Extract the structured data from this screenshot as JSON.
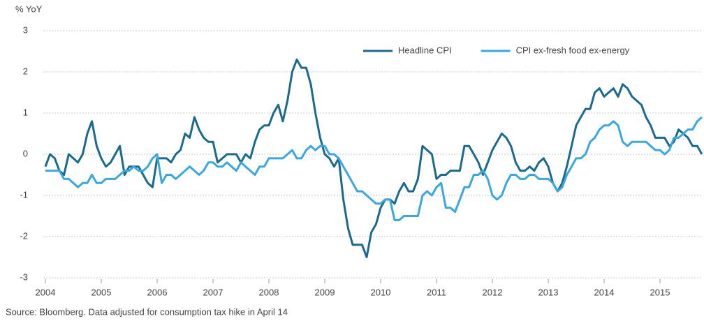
{
  "chart_data": {
    "type": "line",
    "y_label": "% YoY",
    "source": "Source: Bloomberg. Data adjusted for consumption tax hike in April 14",
    "x": [
      2004,
      2004.083,
      2004.167,
      2004.25,
      2004.333,
      2004.417,
      2004.5,
      2004.583,
      2004.667,
      2004.75,
      2004.833,
      2004.917,
      2005,
      2005.083,
      2005.167,
      2005.25,
      2005.333,
      2005.417,
      2005.5,
      2005.583,
      2005.667,
      2005.75,
      2005.833,
      2005.917,
      2006,
      2006.083,
      2006.167,
      2006.25,
      2006.333,
      2006.417,
      2006.5,
      2006.583,
      2006.667,
      2006.75,
      2006.833,
      2006.917,
      2007,
      2007.083,
      2007.167,
      2007.25,
      2007.333,
      2007.417,
      2007.5,
      2007.583,
      2007.667,
      2007.75,
      2007.833,
      2007.917,
      2008,
      2008.083,
      2008.167,
      2008.25,
      2008.333,
      2008.417,
      2008.5,
      2008.583,
      2008.667,
      2008.75,
      2008.833,
      2008.917,
      2009,
      2009.083,
      2009.167,
      2009.25,
      2009.333,
      2009.417,
      2009.5,
      2009.583,
      2009.667,
      2009.75,
      2009.833,
      2009.917,
      2010,
      2010.083,
      2010.167,
      2010.25,
      2010.333,
      2010.417,
      2010.5,
      2010.583,
      2010.667,
      2010.75,
      2010.833,
      2010.917,
      2011,
      2011.083,
      2011.167,
      2011.25,
      2011.333,
      2011.417,
      2011.5,
      2011.583,
      2011.667,
      2011.75,
      2011.833,
      2011.917,
      2012,
      2012.083,
      2012.167,
      2012.25,
      2012.333,
      2012.417,
      2012.5,
      2012.583,
      2012.667,
      2012.75,
      2012.833,
      2012.917,
      2013,
      2013.083,
      2013.167,
      2013.25,
      2013.333,
      2013.417,
      2013.5,
      2013.583,
      2013.667,
      2013.75,
      2013.833,
      2013.917,
      2014,
      2014.083,
      2014.167,
      2014.25,
      2014.333,
      2014.417,
      2014.5,
      2014.583,
      2014.667,
      2014.75,
      2014.833,
      2014.917,
      2015,
      2015.083,
      2015.167,
      2015.25,
      2015.333,
      2015.417,
      2015.5,
      2015.583,
      2015.667,
      2015.75
    ],
    "series": [
      {
        "name": "Headline CPI",
        "color": "#1b6a8c",
        "values": [
          -0.3,
          0,
          -0.1,
          -0.4,
          -0.5,
          0,
          -0.1,
          -0.2,
          0,
          0.5,
          0.8,
          0.2,
          -0.1,
          -0.3,
          -0.2,
          0,
          0.2,
          -0.5,
          -0.3,
          -0.3,
          -0.3,
          -0.5,
          -0.7,
          -0.8,
          -0.1,
          -0.1,
          -0.1,
          -0.2,
          0,
          0.1,
          0.5,
          0.4,
          0.9,
          0.6,
          0.4,
          0.3,
          0.3,
          -0.2,
          -0.1,
          0,
          0,
          0,
          -0.2,
          0,
          -0.1,
          0.3,
          0.6,
          0.7,
          0.7,
          1.0,
          1.2,
          0.8,
          1.3,
          2.0,
          2.3,
          2.1,
          2.1,
          1.7,
          1.0,
          0.4,
          0,
          -0.1,
          -0.3,
          -0.1,
          -1.1,
          -1.8,
          -2.2,
          -2.2,
          -2.2,
          -2.5,
          -1.9,
          -1.7,
          -1.3,
          -1.1,
          -1.1,
          -1.2,
          -0.9,
          -0.7,
          -0.9,
          -0.9,
          -0.6,
          0.2,
          0.1,
          0,
          -0.6,
          -0.5,
          -0.5,
          -0.4,
          -0.4,
          -0.4,
          0.2,
          0.2,
          0,
          -0.2,
          -0.5,
          -0.2,
          0.1,
          0.3,
          0.5,
          0.4,
          0.2,
          -0.2,
          -0.4,
          -0.4,
          -0.3,
          -0.4,
          -0.2,
          -0.1,
          -0.3,
          -0.7,
          -0.9,
          -0.7,
          -0.3,
          0.2,
          0.7,
          0.9,
          1.1,
          1.1,
          1.5,
          1.6,
          1.4,
          1.5,
          1.6,
          1.4,
          1.7,
          1.6,
          1.4,
          1.3,
          1.2,
          0.9,
          0.7,
          0.4,
          0.4,
          0.4,
          0.2,
          0.3,
          0.6,
          0.5,
          0.4,
          0.2,
          0.2,
          0
        ]
      },
      {
        "name": "CPI ex-fresh food ex-energy",
        "color": "#3ba7dd",
        "values": [
          -0.4,
          -0.4,
          -0.4,
          -0.4,
          -0.6,
          -0.6,
          -0.7,
          -0.8,
          -0.7,
          -0.7,
          -0.5,
          -0.7,
          -0.7,
          -0.6,
          -0.6,
          -0.6,
          -0.5,
          -0.4,
          -0.4,
          -0.3,
          -0.4,
          -0.4,
          -0.3,
          -0.1,
          0,
          -0.7,
          -0.5,
          -0.5,
          -0.6,
          -0.5,
          -0.4,
          -0.3,
          -0.4,
          -0.5,
          -0.4,
          -0.2,
          -0.2,
          -0.3,
          -0.3,
          -0.2,
          -0.3,
          -0.4,
          -0.2,
          -0.3,
          -0.4,
          -0.5,
          -0.3,
          -0.3,
          -0.1,
          -0.1,
          -0.1,
          -0.1,
          0,
          0.1,
          -0.1,
          -0.1,
          0.1,
          0.2,
          0.1,
          0.2,
          0.2,
          0,
          0,
          -0.1,
          -0.3,
          -0.5,
          -0.7,
          -0.9,
          -0.9,
          -1.0,
          -1.1,
          -1.2,
          -1.2,
          -1.1,
          -1.1,
          -1.6,
          -1.6,
          -1.5,
          -1.5,
          -1.5,
          -1.5,
          -1.0,
          -0.9,
          -1.0,
          -0.8,
          -0.7,
          -1.3,
          -1.3,
          -1.4,
          -1.1,
          -0.8,
          -0.8,
          -0.5,
          -0.5,
          -0.4,
          -0.6,
          -1.0,
          -1.1,
          -1.0,
          -0.7,
          -0.5,
          -0.5,
          -0.6,
          -0.6,
          -0.5,
          -0.5,
          -0.6,
          -0.6,
          -0.6,
          -0.7,
          -0.9,
          -0.8,
          -0.5,
          -0.3,
          -0.1,
          -0.1,
          0,
          0.3,
          0.4,
          0.6,
          0.7,
          0.7,
          0.8,
          0.7,
          0.3,
          0.2,
          0.3,
          0.3,
          0.3,
          0.3,
          0.2,
          0.1,
          0.1,
          0,
          0.1,
          0.4,
          0.4,
          0.5,
          0.6,
          0.6,
          0.8,
          0.9
        ]
      }
    ],
    "xlim": [
      2004,
      2015.75
    ],
    "xticks": [
      2004,
      2005,
      2006,
      2007,
      2008,
      2009,
      2010,
      2011,
      2012,
      2013,
      2014,
      2015
    ],
    "ylim": [
      -3,
      3
    ],
    "yticks": [
      -3,
      -2,
      -1,
      0,
      1,
      2,
      3
    ],
    "grid": true,
    "legend": "upper right"
  }
}
